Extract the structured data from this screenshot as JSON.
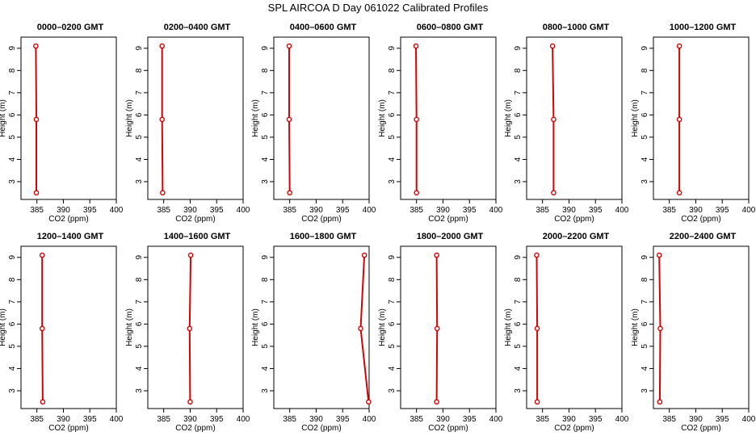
{
  "title": "SPL AIRCOA D  Day 061022  Calibrated Profiles",
  "chart_data": [
    {
      "type": "line",
      "title": "0000–0200 GMT",
      "xlabel": "CO2 (ppm)",
      "ylabel": "Height (m)",
      "xlim": [
        382,
        400
      ],
      "ylim": [
        2.2,
        9.5
      ],
      "xticks": [
        385,
        390,
        395,
        400
      ],
      "yticks": [
        3,
        4,
        5,
        6,
        7,
        8,
        9
      ],
      "points": [
        {
          "x": 384.8,
          "y": 9.1
        },
        {
          "x": 384.9,
          "y": 5.8
        },
        {
          "x": 384.9,
          "y": 2.5
        }
      ]
    },
    {
      "type": "line",
      "title": "0200–0400 GMT",
      "xlabel": "CO2 (ppm)",
      "ylabel": "Height (m)",
      "xlim": [
        382,
        400
      ],
      "ylim": [
        2.2,
        9.5
      ],
      "xticks": [
        385,
        390,
        395,
        400
      ],
      "yticks": [
        3,
        4,
        5,
        6,
        7,
        8,
        9
      ],
      "points": [
        {
          "x": 384.7,
          "y": 9.1
        },
        {
          "x": 384.7,
          "y": 5.8
        },
        {
          "x": 384.8,
          "y": 2.5
        }
      ]
    },
    {
      "type": "line",
      "title": "0400–0600 GMT",
      "xlabel": "CO2 (ppm)",
      "ylabel": "Height (m)",
      "xlim": [
        382,
        400
      ],
      "ylim": [
        2.2,
        9.5
      ],
      "xticks": [
        385,
        390,
        395,
        400
      ],
      "yticks": [
        3,
        4,
        5,
        6,
        7,
        8,
        9
      ],
      "points": [
        {
          "x": 384.9,
          "y": 9.1
        },
        {
          "x": 384.9,
          "y": 5.8
        },
        {
          "x": 385.0,
          "y": 2.5
        }
      ]
    },
    {
      "type": "line",
      "title": "0600–0800 GMT",
      "xlabel": "CO2 (ppm)",
      "ylabel": "Height (m)",
      "xlim": [
        382,
        400
      ],
      "ylim": [
        2.2,
        9.5
      ],
      "xticks": [
        385,
        390,
        395,
        400
      ],
      "yticks": [
        3,
        4,
        5,
        6,
        7,
        8,
        9
      ],
      "points": [
        {
          "x": 384.9,
          "y": 9.1
        },
        {
          "x": 385.0,
          "y": 5.8
        },
        {
          "x": 385.0,
          "y": 2.5
        }
      ]
    },
    {
      "type": "line",
      "title": "0800–1000 GMT",
      "xlabel": "CO2 (ppm)",
      "ylabel": "Height (m)",
      "xlim": [
        382,
        400
      ],
      "ylim": [
        2.2,
        9.5
      ],
      "xticks": [
        385,
        390,
        395,
        400
      ],
      "yticks": [
        3,
        4,
        5,
        6,
        7,
        8,
        9
      ],
      "points": [
        {
          "x": 386.9,
          "y": 9.1
        },
        {
          "x": 387.1,
          "y": 5.8
        },
        {
          "x": 387.1,
          "y": 2.5
        }
      ]
    },
    {
      "type": "line",
      "title": "1000–1200 GMT",
      "xlabel": "CO2 (ppm)",
      "ylabel": "Height (m)",
      "xlim": [
        382,
        400
      ],
      "ylim": [
        2.2,
        9.5
      ],
      "xticks": [
        385,
        390,
        395,
        400
      ],
      "yticks": [
        3,
        4,
        5,
        6,
        7,
        8,
        9
      ],
      "points": [
        {
          "x": 386.9,
          "y": 9.1
        },
        {
          "x": 386.9,
          "y": 5.8
        },
        {
          "x": 386.9,
          "y": 2.5
        }
      ]
    },
    {
      "type": "line",
      "title": "1200–1400 GMT",
      "xlabel": "CO2 (ppm)",
      "ylabel": "Height (m)",
      "xlim": [
        382,
        400
      ],
      "ylim": [
        2.2,
        9.5
      ],
      "xticks": [
        385,
        390,
        395,
        400
      ],
      "yticks": [
        3,
        4,
        5,
        6,
        7,
        8,
        9
      ],
      "points": [
        {
          "x": 386.0,
          "y": 9.1
        },
        {
          "x": 386.0,
          "y": 5.8
        },
        {
          "x": 386.1,
          "y": 2.5
        }
      ]
    },
    {
      "type": "line",
      "title": "1400–1600 GMT",
      "xlabel": "CO2 (ppm)",
      "ylabel": "Height (m)",
      "xlim": [
        382,
        400
      ],
      "ylim": [
        2.2,
        9.5
      ],
      "xticks": [
        385,
        390,
        395,
        400
      ],
      "yticks": [
        3,
        4,
        5,
        6,
        7,
        8,
        9
      ],
      "points": [
        {
          "x": 390.1,
          "y": 9.1
        },
        {
          "x": 389.9,
          "y": 5.8
        },
        {
          "x": 390.0,
          "y": 2.5
        }
      ]
    },
    {
      "type": "line",
      "title": "1600–1800 GMT",
      "xlabel": "CO2 (ppm)",
      "ylabel": "Height (m)",
      "xlim": [
        382,
        400
      ],
      "ylim": [
        2.2,
        9.5
      ],
      "xticks": [
        385,
        390,
        395,
        400
      ],
      "yticks": [
        3,
        4,
        5,
        6,
        7,
        8,
        9
      ],
      "points": [
        {
          "x": 399.1,
          "y": 9.1
        },
        {
          "x": 398.4,
          "y": 5.8
        },
        {
          "x": 399.9,
          "y": 2.5
        }
      ]
    },
    {
      "type": "line",
      "title": "1800–2000 GMT",
      "xlabel": "CO2 (ppm)",
      "ylabel": "Height (m)",
      "xlim": [
        382,
        400
      ],
      "ylim": [
        2.2,
        9.5
      ],
      "xticks": [
        385,
        390,
        395,
        400
      ],
      "yticks": [
        3,
        4,
        5,
        6,
        7,
        8,
        9
      ],
      "points": [
        {
          "x": 388.8,
          "y": 9.1
        },
        {
          "x": 388.9,
          "y": 5.8
        },
        {
          "x": 388.8,
          "y": 2.5
        }
      ]
    },
    {
      "type": "line",
      "title": "2000–2200 GMT",
      "xlabel": "CO2 (ppm)",
      "ylabel": "Height (m)",
      "xlim": [
        382,
        400
      ],
      "ylim": [
        2.2,
        9.5
      ],
      "xticks": [
        385,
        390,
        395,
        400
      ],
      "yticks": [
        3,
        4,
        5,
        6,
        7,
        8,
        9
      ],
      "points": [
        {
          "x": 383.9,
          "y": 9.1
        },
        {
          "x": 384.0,
          "y": 5.8
        },
        {
          "x": 384.0,
          "y": 2.5
        }
      ]
    },
    {
      "type": "line",
      "title": "2200–2400 GMT",
      "xlabel": "CO2 (ppm)",
      "ylabel": "Height (m)",
      "xlim": [
        382,
        400
      ],
      "ylim": [
        2.2,
        9.5
      ],
      "xticks": [
        385,
        390,
        395,
        400
      ],
      "yticks": [
        3,
        4,
        5,
        6,
        7,
        8,
        9
      ],
      "points": [
        {
          "x": 383.1,
          "y": 9.1
        },
        {
          "x": 383.3,
          "y": 5.8
        },
        {
          "x": 383.2,
          "y": 2.5
        }
      ]
    }
  ],
  "colors": {
    "series": "#dd0000",
    "axis": "#000000"
  }
}
